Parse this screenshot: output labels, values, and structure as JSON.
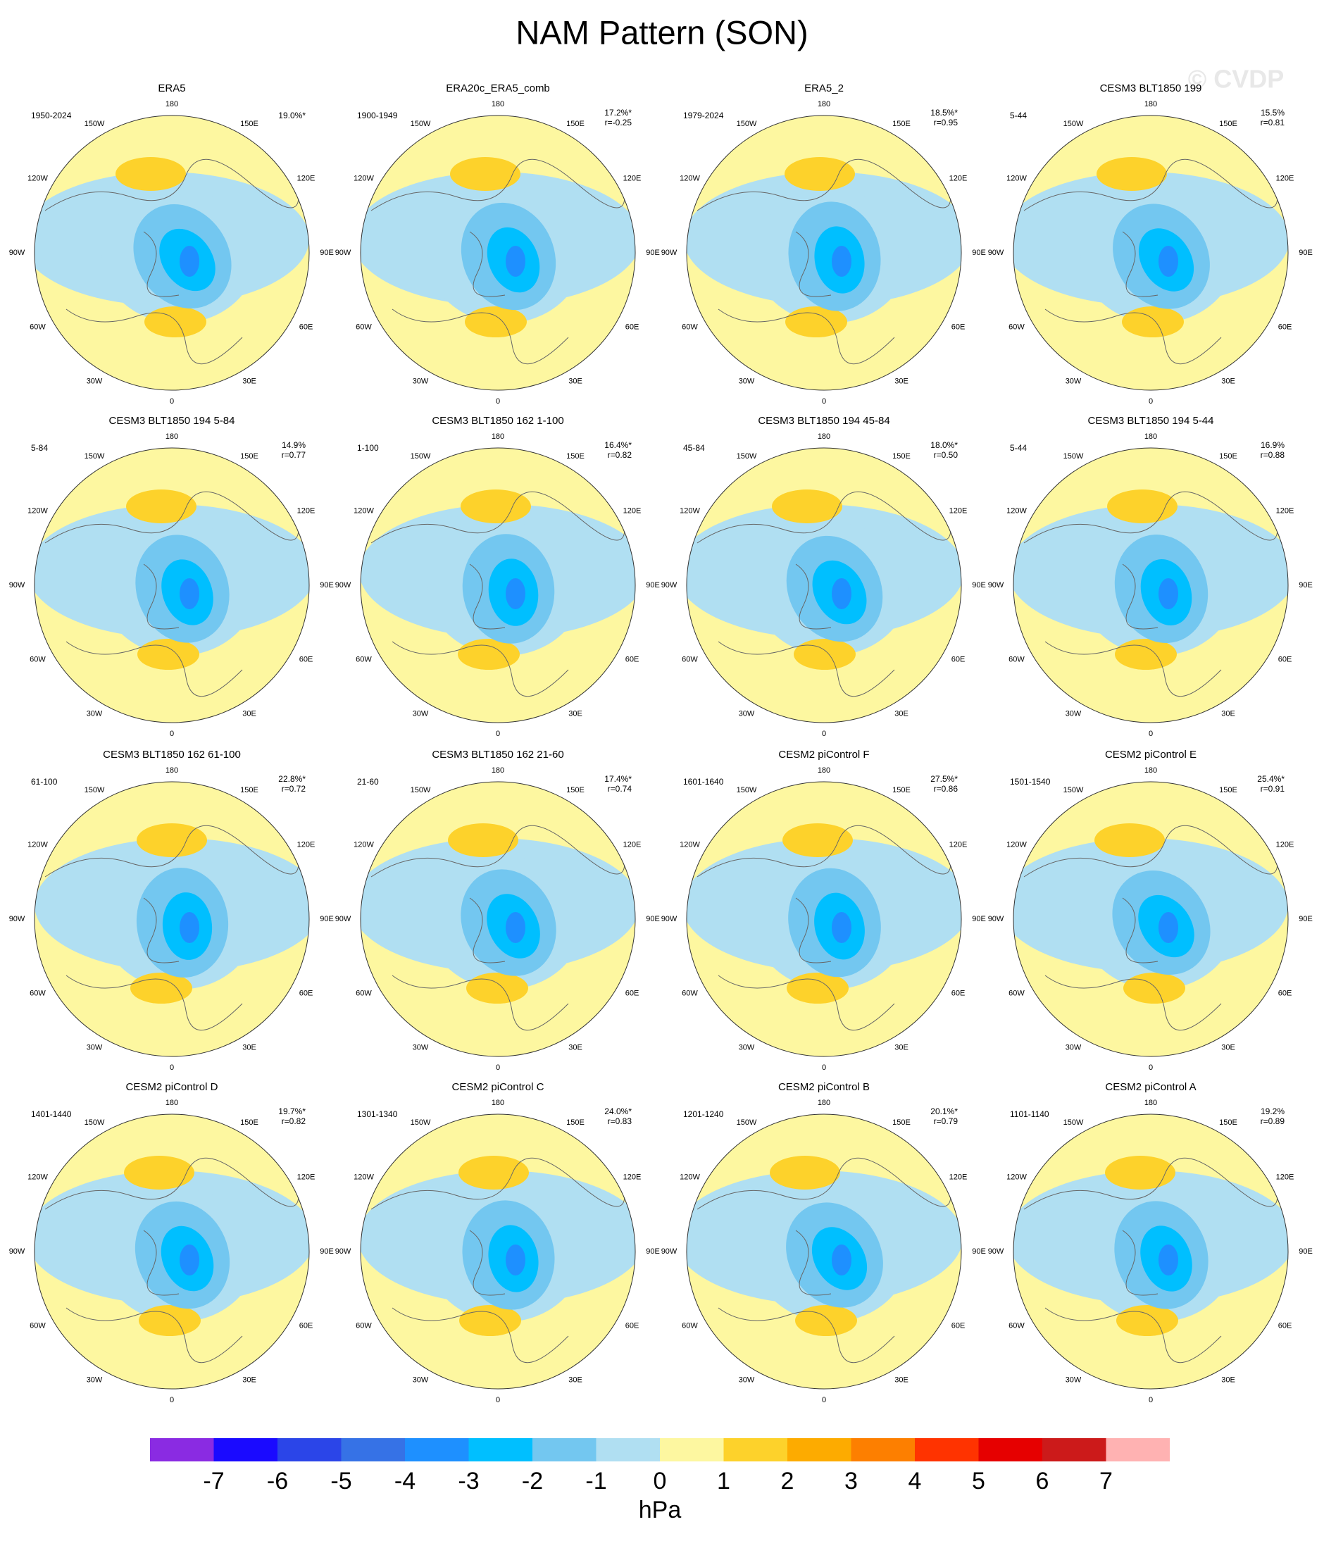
{
  "title": "NAM Pattern (SON)",
  "watermark": "© CVDP",
  "panels": [
    {
      "title": "ERA5",
      "period": "1950-2024",
      "pct": "19.0%*"
    },
    {
      "title": "ERA20c_ERA5_comb",
      "period": "1900-1949",
      "pct": "17.2%*",
      "r": "r=-0.25"
    },
    {
      "title": "ERA5_2",
      "period": "1979-2024",
      "pct": "18.5%*",
      "r": "r=0.95"
    },
    {
      "title": "CESM3 BLT1850 199",
      "period": "5-44",
      "pct": "15.5%",
      "r": "r=0.81"
    },
    {
      "title": "CESM3 BLT1850 194 5-84",
      "period": "5-84",
      "pct": "14.9%",
      "r": "r=0.77"
    },
    {
      "title": "CESM3 BLT1850 162 1-100",
      "period": "1-100",
      "pct": "16.4%*",
      "r": "r=0.82"
    },
    {
      "title": "CESM3 BLT1850 194 45-84",
      "period": "45-84",
      "pct": "18.0%*",
      "r": "r=0.50"
    },
    {
      "title": "CESM3 BLT1850 194 5-44",
      "period": "5-44",
      "pct": "16.9%",
      "r": "r=0.88"
    },
    {
      "title": "CESM3 BLT1850 162 61-100",
      "period": "61-100",
      "pct": "22.8%*",
      "r": "r=0.72"
    },
    {
      "title": "CESM3 BLT1850 162 21-60",
      "period": "21-60",
      "pct": "17.4%*",
      "r": "r=0.74"
    },
    {
      "title": "CESM2 piControl F",
      "period": "1601-1640",
      "pct": "27.5%*",
      "r": "r=0.86"
    },
    {
      "title": "CESM2 piControl E",
      "period": "1501-1540",
      "pct": "25.4%*",
      "r": "r=0.91"
    },
    {
      "title": "CESM2 piControl D",
      "period": "1401-1440",
      "pct": "19.7%*",
      "r": "r=0.82"
    },
    {
      "title": "CESM2 piControl C",
      "period": "1301-1340",
      "pct": "24.0%*",
      "r": "r=0.83"
    },
    {
      "title": "CESM2 piControl B",
      "period": "1201-1240",
      "pct": "20.1%*",
      "r": "r=0.79"
    },
    {
      "title": "CESM2 piControl A",
      "period": "1101-1140",
      "pct": "19.2%",
      "r": "r=0.89"
    }
  ],
  "longitude_labels": [
    "180",
    "150E",
    "120E",
    "90E",
    "60E",
    "30E",
    "0",
    "30W",
    "60W",
    "90W",
    "120W",
    "150W"
  ],
  "colorbar": {
    "colors": [
      "#8a2be2",
      "#1a0aff",
      "#2b45e8",
      "#3672e6",
      "#1e90ff",
      "#00bfff",
      "#73c7f0",
      "#b0dff2",
      "#fdf7a0",
      "#fdd22b",
      "#fdab00",
      "#fd7f00",
      "#ff3300",
      "#e60000",
      "#cc1a1a",
      "#ffb2b2"
    ],
    "labels": [
      -7,
      -6,
      -5,
      -4,
      -3,
      -2,
      -1,
      0,
      1,
      2,
      3,
      4,
      5,
      6,
      7
    ],
    "unit": "hPa"
  }
}
